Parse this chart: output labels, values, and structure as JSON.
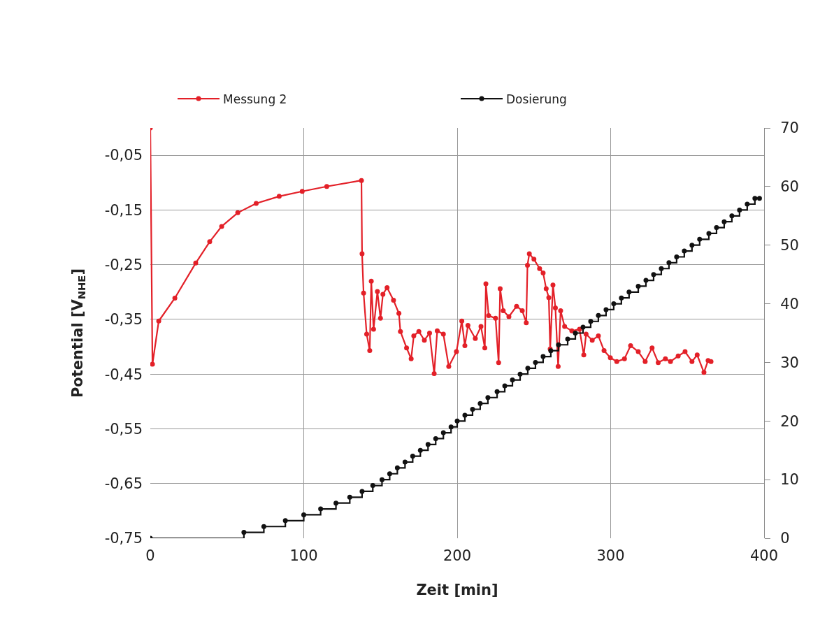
{
  "chart_data": {
    "type": "line",
    "xlabel": "Zeit [min]",
    "ylabel": "Potential [V$_{NHE}$]",
    "xlim": [
      0,
      400
    ],
    "xticks": [
      0,
      100,
      200,
      300,
      400
    ],
    "ylim": [
      -0.75,
      0
    ],
    "yticks": [
      {
        "value": -0.75,
        "label": "-0,75"
      },
      {
        "value": -0.65,
        "label": "-0,65"
      },
      {
        "value": -0.55,
        "label": "-0,55"
      },
      {
        "value": -0.45,
        "label": "-0,45"
      },
      {
        "value": -0.35,
        "label": "-0,35"
      },
      {
        "value": -0.25,
        "label": "-0,25"
      },
      {
        "value": -0.15,
        "label": "-0,15"
      },
      {
        "value": -0.05,
        "label": "-0,05"
      }
    ],
    "y2lim": [
      0,
      70
    ],
    "y2ticks": [
      0,
      10,
      20,
      30,
      40,
      50,
      60,
      70
    ],
    "grid": true,
    "legend": "top",
    "marker": "circle",
    "line_style": "solid",
    "series": [
      {
        "name": "Messung 2",
        "color": "#e32028",
        "axis": "y",
        "x": [
          0,
          1.4,
          5.5,
          16,
          29.6,
          38.7,
          46.5,
          57,
          69,
          84,
          99,
          115,
          137.6,
          138,
          139,
          141,
          143,
          144,
          145.5,
          148,
          150,
          151.6,
          154.3,
          158.5,
          162,
          163,
          167,
          170,
          171.7,
          175,
          178.6,
          182,
          185,
          187,
          191,
          194.5,
          199.5,
          203,
          205,
          207,
          211.8,
          215.5,
          218,
          218.7,
          220.5,
          225,
          227,
          228,
          230,
          233.7,
          238.7,
          242.4,
          245,
          245.8,
          247,
          250,
          253.7,
          256,
          258,
          259.7,
          260.6,
          262.4,
          264,
          265.8,
          267.4,
          270,
          274.7,
          279.7,
          282.5,
          284,
          288,
          292,
          295.7,
          299.8,
          304,
          309,
          313,
          318,
          322.5,
          327,
          331,
          335.7,
          339,
          344,
          348.5,
          353,
          356.4,
          360.8,
          363.5,
          365.4
        ],
        "values": [
          0,
          -0.432,
          -0.353,
          -0.311,
          -0.247,
          -0.208,
          -0.18,
          -0.155,
          -0.138,
          -0.125,
          -0.116,
          -0.107,
          -0.096,
          -0.23,
          -0.302,
          -0.377,
          -0.407,
          -0.28,
          -0.368,
          -0.299,
          -0.348,
          -0.304,
          -0.292,
          -0.315,
          -0.339,
          -0.372,
          -0.402,
          -0.422,
          -0.38,
          -0.372,
          -0.388,
          -0.375,
          -0.449,
          -0.371,
          -0.377,
          -0.436,
          -0.409,
          -0.353,
          -0.398,
          -0.361,
          -0.385,
          -0.363,
          -0.402,
          -0.285,
          -0.343,
          -0.348,
          -0.429,
          -0.294,
          -0.334,
          -0.345,
          -0.326,
          -0.334,
          -0.356,
          -0.251,
          -0.23,
          -0.24,
          -0.257,
          -0.265,
          -0.294,
          -0.31,
          -0.404,
          -0.287,
          -0.329,
          -0.436,
          -0.334,
          -0.363,
          -0.371,
          -0.368,
          -0.415,
          -0.377,
          -0.388,
          -0.38,
          -0.407,
          -0.42,
          -0.427,
          -0.422,
          -0.398,
          -0.409,
          -0.427,
          -0.402,
          -0.429,
          -0.422,
          -0.427,
          -0.417,
          -0.409,
          -0.427,
          -0.415,
          -0.447,
          -0.425,
          -0.427
        ]
      },
      {
        "name": "Dosierung",
        "color": "#111111",
        "type": "step",
        "axis": "y2",
        "x": [
          0,
          61,
          74,
          88,
          100,
          111,
          121,
          130,
          138,
          145,
          151,
          156,
          161,
          166,
          171,
          176,
          181,
          186,
          191,
          196,
          200,
          205,
          210,
          215,
          220,
          226,
          231,
          236,
          241,
          246,
          251,
          256,
          261,
          266,
          272,
          277,
          282,
          287,
          292,
          297,
          302,
          307,
          312,
          318,
          323,
          328,
          333,
          338,
          343,
          348,
          353,
          358,
          364,
          369,
          374,
          379,
          384,
          389,
          394,
          397
        ],
        "values": [
          0,
          1,
          2,
          3,
          4,
          5,
          6,
          7,
          8,
          9,
          10,
          11,
          12,
          13,
          14,
          15,
          16,
          17,
          18,
          19,
          20,
          21,
          22,
          23,
          24,
          25,
          26,
          27,
          28,
          29,
          30,
          31,
          32,
          33,
          34,
          35,
          36,
          37,
          38,
          39,
          40,
          41,
          42,
          43,
          44,
          45,
          46,
          47,
          48,
          49,
          50,
          51,
          52,
          53,
          54,
          55,
          56,
          57,
          58,
          58
        ]
      }
    ]
  }
}
